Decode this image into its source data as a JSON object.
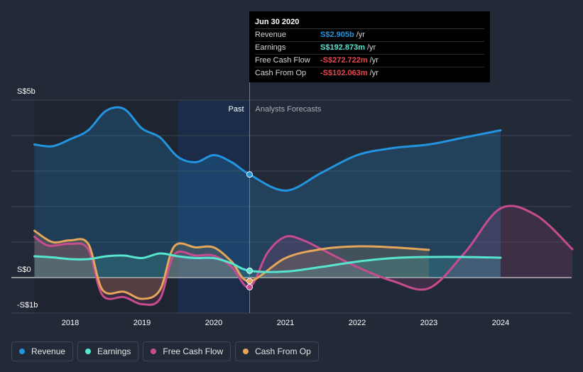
{
  "colors": {
    "background": "#232a37",
    "revenue": "#2394df",
    "earnings": "#58e5d0",
    "free_cash_flow": "#c64b8f",
    "cash_from_op": "#e5a55a",
    "negative": "#e8474f",
    "grid": "#3b4352"
  },
  "tooltip": {
    "title": "Jun 30 2020",
    "rows": [
      {
        "label": "Revenue",
        "value": "S$2.905b",
        "unit": "/yr",
        "color": "#2394df"
      },
      {
        "label": "Earnings",
        "value": "S$192.873m",
        "unit": "/yr",
        "color": "#58e5d0"
      },
      {
        "label": "Free Cash Flow",
        "value": "-S$272.722m",
        "unit": "/yr",
        "color": "#e8474f"
      },
      {
        "label": "Cash From Op",
        "value": "-S$102.063m",
        "unit": "/yr",
        "color": "#e8474f"
      }
    ]
  },
  "legend": {
    "items": [
      {
        "label": "Revenue",
        "color": "#2394df"
      },
      {
        "label": "Earnings",
        "color": "#58e5d0"
      },
      {
        "label": "Free Cash Flow",
        "color": "#c64b8f"
      },
      {
        "label": "Cash From Op",
        "color": "#e5a55a"
      }
    ]
  },
  "chart_data": {
    "type": "line",
    "title": "",
    "xlabel": "",
    "ylabel": "",
    "x_range": [
      2017.0,
      2025.0
    ],
    "ylim": [
      -1.0,
      5.0
    ],
    "y_ticks": [
      {
        "value": 5,
        "label": "S$5b"
      },
      {
        "value": 0,
        "label": "S$0"
      },
      {
        "value": -1,
        "label": "-S$1b"
      }
    ],
    "x_ticks": [
      {
        "value": 2018,
        "label": "2018"
      },
      {
        "value": 2019,
        "label": "2019"
      },
      {
        "value": 2020,
        "label": "2020"
      },
      {
        "value": 2021,
        "label": "2021"
      },
      {
        "value": 2022,
        "label": "2022"
      },
      {
        "value": 2023,
        "label": "2023"
      },
      {
        "value": 2024,
        "label": "2024"
      }
    ],
    "divider_x": 2020.5,
    "highlight_start_x": 2019.5,
    "past_label": "Past",
    "forecast_label": "Analysts Forecasts",
    "series": [
      {
        "name": "Revenue",
        "key": "revenue",
        "x": [
          2017.5,
          2017.75,
          2018.0,
          2018.25,
          2018.5,
          2018.75,
          2019.0,
          2019.25,
          2019.5,
          2019.75,
          2020.0,
          2020.25,
          2020.5,
          2021.0,
          2021.5,
          2022.0,
          2022.5,
          2023.0,
          2023.5,
          2024.0
        ],
        "values": [
          3.75,
          3.7,
          3.9,
          4.15,
          4.7,
          4.75,
          4.2,
          3.95,
          3.4,
          3.25,
          3.45,
          3.25,
          2.905,
          2.45,
          2.95,
          3.45,
          3.65,
          3.75,
          3.95,
          4.15
        ]
      },
      {
        "name": "Earnings",
        "key": "earnings",
        "x": [
          2017.5,
          2017.75,
          2018.0,
          2018.25,
          2018.5,
          2018.75,
          2019.0,
          2019.25,
          2019.5,
          2019.75,
          2020.0,
          2020.25,
          2020.5,
          2021.0,
          2021.5,
          2022.0,
          2022.5,
          2023.0,
          2023.5,
          2024.0
        ],
        "values": [
          0.6,
          0.57,
          0.52,
          0.52,
          0.6,
          0.62,
          0.55,
          0.68,
          0.6,
          0.55,
          0.55,
          0.4,
          0.193,
          0.17,
          0.3,
          0.45,
          0.55,
          0.58,
          0.58,
          0.56
        ]
      },
      {
        "name": "Free Cash Flow",
        "key": "free_cash_flow",
        "x": [
          2017.5,
          2017.7,
          2018.0,
          2018.25,
          2018.45,
          2018.75,
          2019.0,
          2019.25,
          2019.45,
          2019.75,
          2020.0,
          2020.25,
          2020.5,
          2020.75,
          2021.0,
          2021.25,
          2021.5,
          2022.0,
          2022.5,
          2023.0,
          2023.5,
          2024.0,
          2024.5,
          2025.0
        ],
        "values": [
          1.15,
          0.9,
          0.95,
          0.8,
          -0.5,
          -0.55,
          -0.75,
          -0.6,
          0.65,
          0.62,
          0.62,
          0.3,
          -0.27,
          0.7,
          1.15,
          1.05,
          0.8,
          0.3,
          -0.1,
          -0.3,
          0.7,
          1.95,
          1.75,
          0.8
        ]
      },
      {
        "name": "Cash From Op",
        "key": "cash_from_op",
        "x": [
          2017.5,
          2017.75,
          2018.0,
          2018.25,
          2018.45,
          2018.75,
          2019.0,
          2019.25,
          2019.45,
          2019.75,
          2020.0,
          2020.25,
          2020.5,
          2021.0,
          2021.5,
          2022.0,
          2022.5,
          2023.0
        ],
        "values": [
          1.32,
          1.0,
          1.05,
          0.95,
          -0.35,
          -0.4,
          -0.6,
          -0.35,
          0.88,
          0.85,
          0.85,
          0.45,
          -0.1,
          0.55,
          0.8,
          0.88,
          0.85,
          0.78
        ]
      }
    ],
    "markers": [
      {
        "series": "revenue",
        "x": 2020.5,
        "y": 2.905
      },
      {
        "series": "earnings",
        "x": 2020.5,
        "y": 0.193
      },
      {
        "series": "cash_from_op",
        "x": 2020.5,
        "y": -0.1
      },
      {
        "series": "free_cash_flow",
        "x": 2020.5,
        "y": -0.27
      }
    ]
  }
}
